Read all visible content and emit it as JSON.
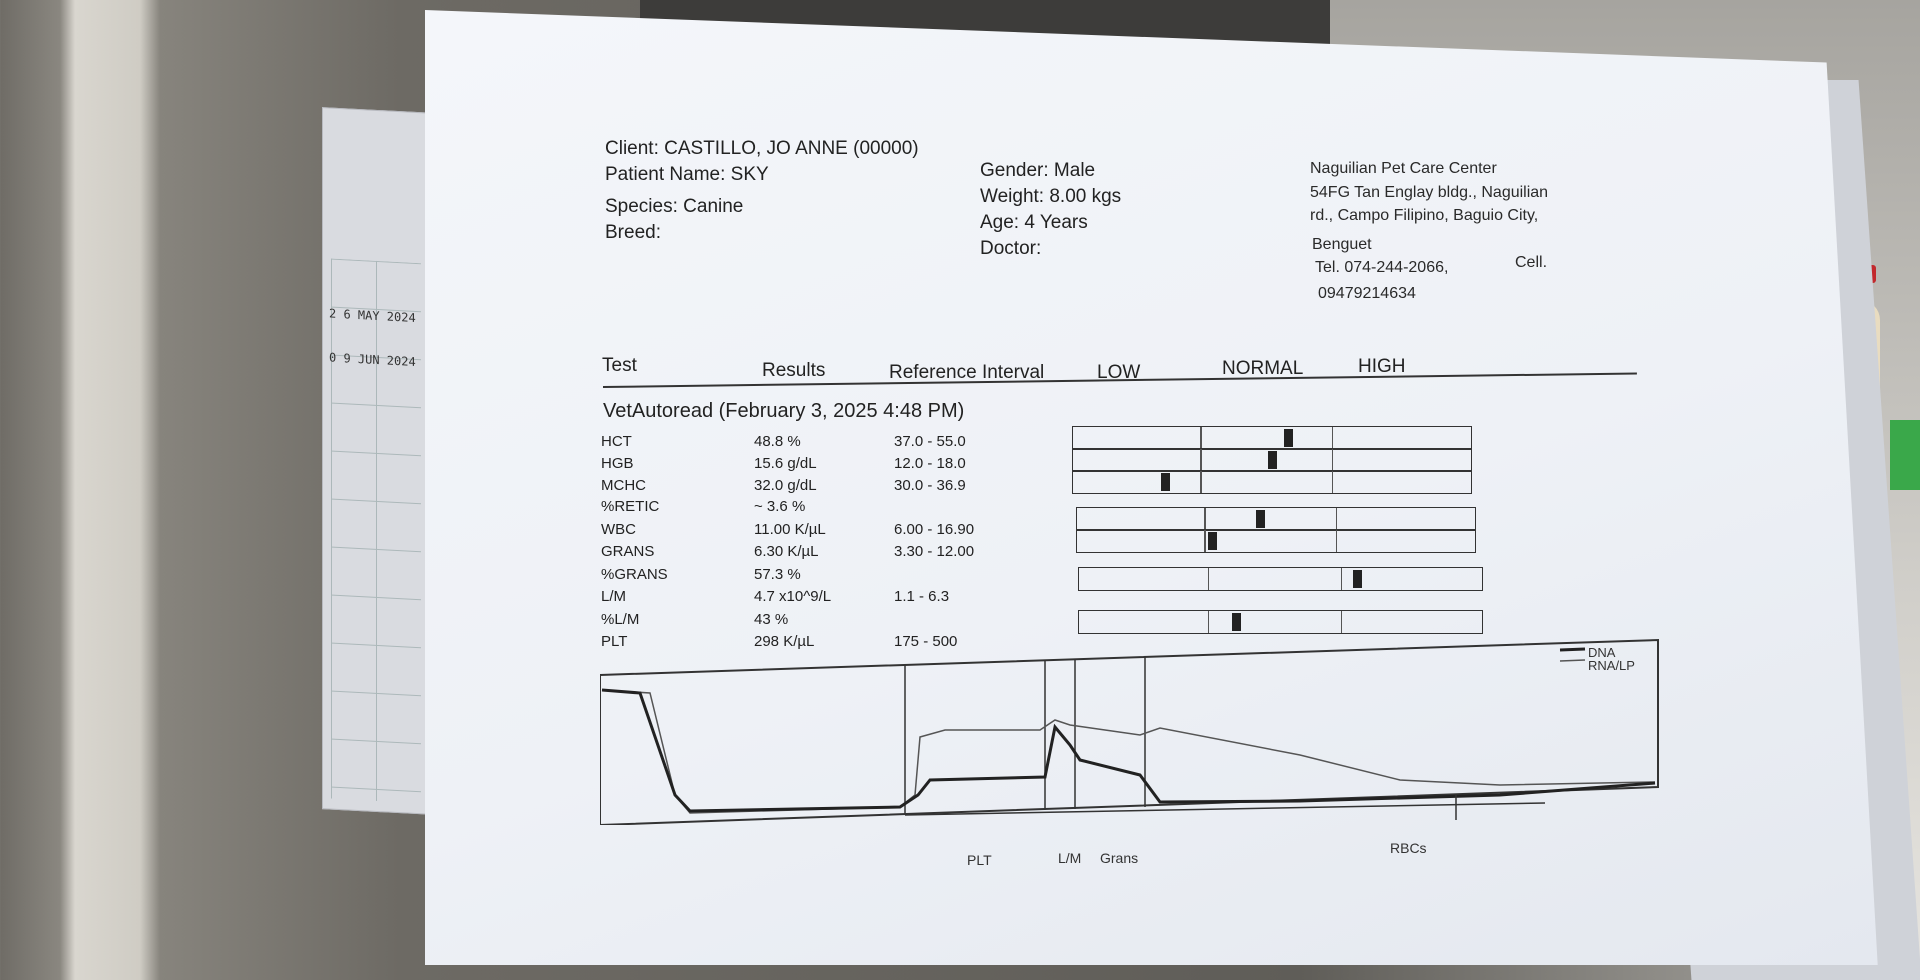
{
  "header": {
    "client": "Client: CASTILLO, JO ANNE (00000)",
    "patient": "Patient Name: SKY",
    "species": "Species: Canine",
    "breed": "Breed:",
    "gender": "Gender: Male",
    "weight": "Weight: 8.00 kgs",
    "age": "Age: 4 Years",
    "doctor": "Doctor:"
  },
  "clinic": {
    "name": "Naguilian Pet Care Center",
    "address1": "54FG Tan Englay bldg., Naguilian",
    "address2": "rd., Campo Filipino, Baguio City,",
    "address3": "Benguet",
    "tel": "Tel. 074-244-2066,",
    "cell_label": "Cell.",
    "cell": "09479214634"
  },
  "columns": {
    "test": "Test",
    "results": "Results",
    "reference": "Reference Interval",
    "low": "LOW",
    "normal": "NORMAL",
    "high": "HIGH"
  },
  "section": "VetAutoread (February 3, 2025 4:48 PM)",
  "rows": [
    {
      "test": "HCT",
      "result": "48.8 %",
      "ref": "37.0 - 55.0",
      "level": 0.53
    },
    {
      "test": "HGB",
      "result": "15.6 g/dL",
      "ref": "12.0 - 18.0",
      "level": 0.49
    },
    {
      "test": "MCHC",
      "result": "32.0 g/dL",
      "ref": "30.0 - 36.9",
      "level": 0.22
    },
    {
      "test": "%RETIC",
      "result": "~ 3.6 %",
      "ref": ""
    },
    {
      "test": "WBC",
      "result": "11.00 K/µL",
      "ref": "6.00 - 16.90",
      "level": 0.45
    },
    {
      "test": "GRANS",
      "result": "6.30 K/µL",
      "ref": "3.30 - 12.00",
      "level": 0.33
    },
    {
      "test": "%GRANS",
      "result": "57.3 %",
      "ref": ""
    },
    {
      "test": "L/M",
      "result": "4.7 x10^9/L",
      "ref": "1.1 - 6.3",
      "level": 0.68
    },
    {
      "test": "%L/M",
      "result": "43 %",
      "ref": ""
    },
    {
      "test": "PLT",
      "result": "298 K/µL",
      "ref": "175 - 500",
      "level": 0.38
    }
  ],
  "graph": {
    "legend_dna": "DNA",
    "legend_rna": "RNA/LP",
    "label_plt": "PLT",
    "label_lm": "L/M",
    "label_grans": "Grans",
    "label_rbcs": "RBCs"
  },
  "calendar": {
    "dates": [
      "2 6 MAY 2024",
      "0 9 JUN 2024"
    ]
  }
}
